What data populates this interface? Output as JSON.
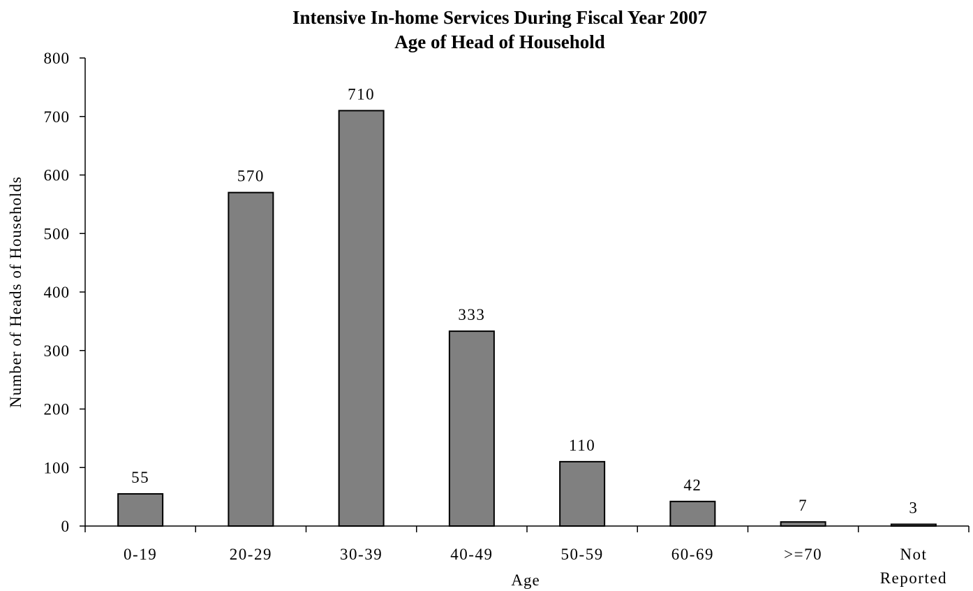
{
  "chart_data": {
    "type": "bar",
    "title": [
      "Intensive In-home Services During Fiscal Year 2007",
      "Age of Head of Household"
    ],
    "xlabel": "Age",
    "ylabel": "Number of Heads of Households",
    "categories": [
      [
        "0-19"
      ],
      [
        "20-29"
      ],
      [
        "30-39"
      ],
      [
        "40-49"
      ],
      [
        "50-59"
      ],
      [
        "60-69"
      ],
      [
        ">=70"
      ],
      [
        "Not",
        "Reported"
      ]
    ],
    "values": [
      55,
      570,
      710,
      333,
      110,
      42,
      7,
      3
    ],
    "data_labels": [
      "55",
      "570",
      "710",
      "333",
      "110",
      "42",
      "7",
      "3"
    ],
    "ylim": [
      0,
      800
    ],
    "yticks": [
      0,
      100,
      200,
      300,
      400,
      500,
      600,
      700,
      800
    ],
    "grid": false,
    "legend": "none",
    "bar_color": "#808080"
  }
}
